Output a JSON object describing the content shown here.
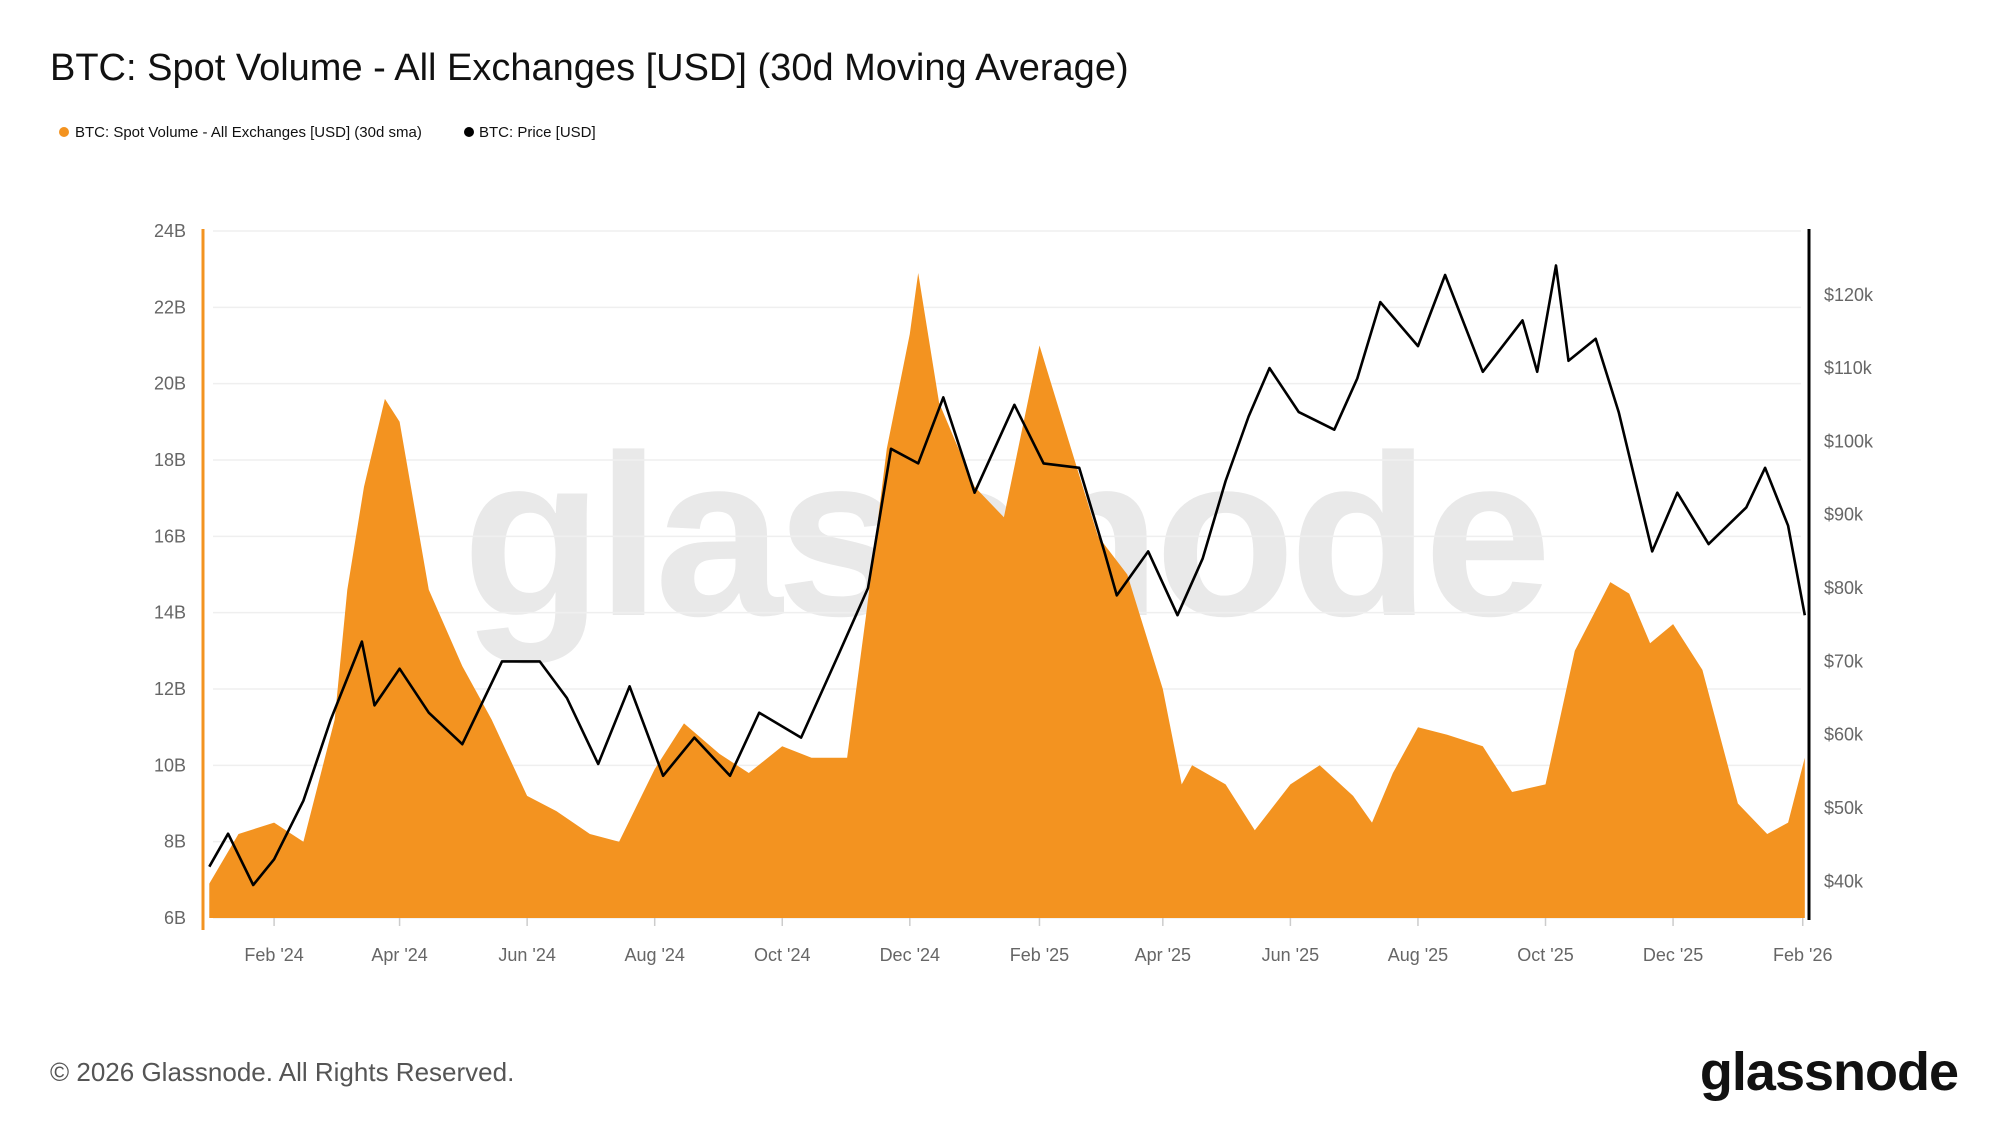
{
  "chart_data": {
    "type": "area+line",
    "title": "BTC: Spot Volume - All Exchanges [USD] (30d Moving Average)",
    "legend_placement": "top-left",
    "grid": true,
    "colors": {
      "volume": "#F39320",
      "price": "#000000",
      "grid": "#efefef"
    },
    "x_ticks": [
      "Feb '24",
      "Apr '24",
      "Jun '24",
      "Aug '24",
      "Oct '24",
      "Dec '24",
      "Feb '25",
      "Apr '25",
      "Jun '25",
      "Aug '25",
      "Oct '25",
      "Dec '25",
      "Feb '26"
    ],
    "x_tick_dates": [
      "2024-02-01",
      "2024-04-01",
      "2024-06-01",
      "2024-08-01",
      "2024-10-01",
      "2024-12-01",
      "2025-02-01",
      "2025-04-01",
      "2025-06-01",
      "2025-08-01",
      "2025-10-01",
      "2025-12-01",
      "2026-02-01"
    ],
    "xlim": [
      "2023-12-29",
      "2026-02-04"
    ],
    "left_axis": {
      "ticks": [
        "6B",
        "8B",
        "10B",
        "12B",
        "14B",
        "16B",
        "18B",
        "20B",
        "22B",
        "24B"
      ],
      "tick_values": [
        6,
        8,
        10,
        12,
        14,
        16,
        18,
        20,
        22,
        24
      ],
      "ylim": [
        6,
        24
      ],
      "unit": "B USD"
    },
    "right_axis": {
      "ticks": [
        "$40k",
        "$50k",
        "$60k",
        "$70k",
        "$80k",
        "$90k",
        "$100k",
        "$110k",
        "$120k"
      ],
      "tick_values": [
        40,
        50,
        60,
        70,
        80,
        90,
        100,
        110,
        120
      ],
      "ylim": [
        35,
        128.7
      ],
      "unit": "k USD"
    },
    "series": [
      {
        "name": "BTC: Spot Volume - All Exchanges [USD] (30d sma)",
        "axis": "left",
        "type": "area",
        "dates": [
          "2024-01-01",
          "2024-01-15",
          "2024-02-01",
          "2024-02-15",
          "2024-03-01",
          "2024-03-07",
          "2024-03-15",
          "2024-03-25",
          "2024-04-01",
          "2024-04-15",
          "2024-05-01",
          "2024-05-15",
          "2024-06-01",
          "2024-06-15",
          "2024-07-01",
          "2024-07-15",
          "2024-08-01",
          "2024-08-15",
          "2024-09-01",
          "2024-09-15",
          "2024-10-01",
          "2024-10-15",
          "2024-11-01",
          "2024-11-10",
          "2024-11-20",
          "2024-12-01",
          "2024-12-05",
          "2024-12-15",
          "2025-01-01",
          "2025-01-15",
          "2025-02-01",
          "2025-02-15",
          "2025-03-01",
          "2025-03-15",
          "2025-04-01",
          "2025-04-10",
          "2025-04-15",
          "2025-05-01",
          "2025-05-15",
          "2025-06-01",
          "2025-06-15",
          "2025-07-01",
          "2025-07-10",
          "2025-07-20",
          "2025-08-01",
          "2025-08-15",
          "2025-09-01",
          "2025-09-15",
          "2025-10-01",
          "2025-10-15",
          "2025-11-01",
          "2025-11-10",
          "2025-11-20",
          "2025-12-01",
          "2025-12-15",
          "2026-01-01",
          "2026-01-15",
          "2026-01-25",
          "2026-02-02"
        ],
        "values": [
          6.9,
          8.2,
          8.5,
          8.0,
          11.2,
          14.6,
          17.3,
          19.6,
          19.0,
          14.6,
          12.6,
          11.2,
          9.2,
          8.8,
          8.2,
          8.0,
          9.9,
          11.1,
          10.3,
          9.8,
          10.5,
          10.2,
          10.2,
          13.9,
          18.3,
          21.3,
          22.9,
          19.5,
          17.3,
          16.5,
          21.0,
          18.5,
          16.0,
          15.0,
          12.0,
          9.5,
          10.0,
          9.5,
          8.3,
          9.5,
          10.0,
          9.2,
          8.5,
          9.8,
          11.0,
          10.8,
          10.5,
          9.3,
          9.5,
          13.0,
          14.8,
          14.5,
          13.2,
          13.7,
          12.5,
          9.0,
          8.2,
          8.5,
          10.2
        ]
      },
      {
        "name": "BTC: Price [USD]",
        "axis": "right",
        "type": "line",
        "dates": [
          "2024-01-01",
          "2024-01-10",
          "2024-01-22",
          "2024-02-01",
          "2024-02-15",
          "2024-02-28",
          "2024-03-14",
          "2024-03-20",
          "2024-04-01",
          "2024-04-15",
          "2024-05-01",
          "2024-05-20",
          "2024-06-07",
          "2024-06-20",
          "2024-07-05",
          "2024-07-20",
          "2024-08-05",
          "2024-08-20",
          "2024-09-06",
          "2024-09-20",
          "2024-10-10",
          "2024-10-28",
          "2024-11-11",
          "2024-11-22",
          "2024-12-05",
          "2024-12-17",
          "2025-01-01",
          "2025-01-20",
          "2025-02-03",
          "2025-02-20",
          "2025-03-04",
          "2025-03-10",
          "2025-03-25",
          "2025-04-08",
          "2025-04-20",
          "2025-05-01",
          "2025-05-12",
          "2025-05-22",
          "2025-06-05",
          "2025-06-22",
          "2025-07-03",
          "2025-07-14",
          "2025-08-01",
          "2025-08-14",
          "2025-09-01",
          "2025-09-20",
          "2025-09-27",
          "2025-10-06",
          "2025-10-12",
          "2025-10-25",
          "2025-11-05",
          "2025-11-21",
          "2025-12-03",
          "2025-12-18",
          "2026-01-05",
          "2026-01-14",
          "2026-01-25",
          "2026-02-02"
        ],
        "values": [
          42,
          46.5,
          39.5,
          43,
          51,
          62,
          72.7,
          64,
          69,
          63,
          58.7,
          70,
          70,
          65,
          56,
          66.6,
          54.4,
          59.6,
          54.4,
          63,
          59.6,
          71,
          80,
          99,
          97,
          106,
          93,
          105,
          97,
          96.4,
          85,
          79,
          85,
          76.3,
          84,
          94.6,
          103.4,
          110,
          104,
          101.6,
          108.6,
          119,
          113,
          122.7,
          109.5,
          116.5,
          109.5,
          124,
          111,
          114,
          104,
          85,
          93,
          86,
          91,
          96.4,
          88.5,
          76.3
        ]
      }
    ]
  },
  "footer": {
    "copyright": "© 2026 Glassnode. All Rights Reserved.",
    "logo": "glassnode",
    "watermark": "glassnode"
  }
}
